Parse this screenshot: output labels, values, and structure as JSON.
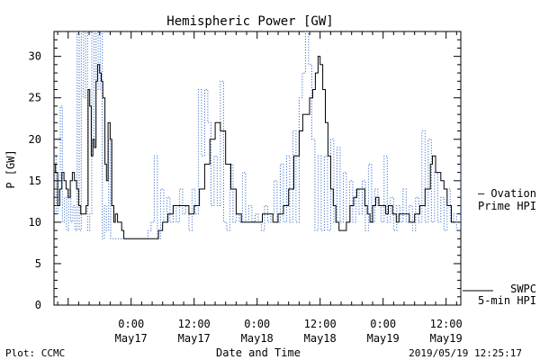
{
  "chart_data": {
    "type": "line",
    "title": "Hemispheric Power [GW]",
    "ylabel": "P [GW]",
    "xlabel": "Date and Time",
    "ylim": [
      0,
      33
    ],
    "y_ticks": [
      0,
      5,
      10,
      15,
      20,
      25,
      30
    ],
    "xlim_hours": [
      -14.7,
      62.8
    ],
    "x_ticks": [
      {
        "hour": 0,
        "time": "0:00",
        "date": "May17"
      },
      {
        "hour": 12,
        "time": "12:00",
        "date": "May17"
      },
      {
        "hour": 24,
        "time": "0:00",
        "date": "May18"
      },
      {
        "hour": 36,
        "time": "12:00",
        "date": "May18"
      },
      {
        "hour": 48,
        "time": "0:00",
        "date": "May19"
      },
      {
        "hour": 60,
        "time": "12:00",
        "date": "May19"
      }
    ],
    "colors": {
      "ovation": "#3a6fc8",
      "swpc": "#000000"
    },
    "series": [
      {
        "name": "5-min HPI",
        "source": "SWPC",
        "color": "#000000",
        "style": "solid",
        "points": [
          [
            -14.7,
            17
          ],
          [
            -14.4,
            16
          ],
          [
            -14.0,
            12
          ],
          [
            -13.6,
            14
          ],
          [
            -13.2,
            16
          ],
          [
            -12.8,
            15
          ],
          [
            -12.4,
            14
          ],
          [
            -12.0,
            13
          ],
          [
            -11.6,
            15
          ],
          [
            -11.2,
            16
          ],
          [
            -10.8,
            15
          ],
          [
            -10.4,
            14
          ],
          [
            -10.0,
            12
          ],
          [
            -9.6,
            11
          ],
          [
            -9.0,
            11
          ],
          [
            -8.6,
            12
          ],
          [
            -8.2,
            26
          ],
          [
            -7.9,
            24
          ],
          [
            -7.6,
            18
          ],
          [
            -7.3,
            20
          ],
          [
            -7.0,
            19
          ],
          [
            -6.7,
            27
          ],
          [
            -6.4,
            29
          ],
          [
            -6.0,
            28
          ],
          [
            -5.7,
            27
          ],
          [
            -5.4,
            25
          ],
          [
            -5.0,
            17
          ],
          [
            -4.7,
            15
          ],
          [
            -4.4,
            22
          ],
          [
            -4.0,
            20
          ],
          [
            -3.7,
            12
          ],
          [
            -3.3,
            10
          ],
          [
            -3.0,
            11
          ],
          [
            -2.6,
            10
          ],
          [
            -2.2,
            10
          ],
          [
            -1.8,
            9
          ],
          [
            -1.4,
            8
          ],
          [
            0.0,
            8
          ],
          [
            2.0,
            8
          ],
          [
            4.0,
            8
          ],
          [
            5.2,
            9
          ],
          [
            6.0,
            10
          ],
          [
            7.0,
            11
          ],
          [
            8.0,
            12
          ],
          [
            9.0,
            12
          ],
          [
            10.0,
            12
          ],
          [
            11.0,
            11
          ],
          [
            12.0,
            12
          ],
          [
            13.0,
            14
          ],
          [
            14.0,
            17
          ],
          [
            15.0,
            20
          ],
          [
            16.0,
            22
          ],
          [
            17.0,
            21
          ],
          [
            18.0,
            17
          ],
          [
            19.0,
            14
          ],
          [
            20.0,
            11
          ],
          [
            21.0,
            10
          ],
          [
            22.0,
            10
          ],
          [
            23.0,
            10
          ],
          [
            24.0,
            10
          ],
          [
            25.0,
            11
          ],
          [
            26.0,
            11
          ],
          [
            27.0,
            10
          ],
          [
            28.0,
            11
          ],
          [
            29.0,
            12
          ],
          [
            30.0,
            14
          ],
          [
            31.0,
            18
          ],
          [
            32.0,
            21
          ],
          [
            32.7,
            23
          ],
          [
            33.3,
            23
          ],
          [
            34.0,
            25
          ],
          [
            34.6,
            26
          ],
          [
            35.1,
            28
          ],
          [
            35.6,
            30
          ],
          [
            36.0,
            29
          ],
          [
            36.5,
            26
          ],
          [
            37.0,
            22
          ],
          [
            37.5,
            18
          ],
          [
            38.0,
            14
          ],
          [
            38.5,
            12
          ],
          [
            39.0,
            10
          ],
          [
            39.6,
            9
          ],
          [
            40.3,
            9
          ],
          [
            41.0,
            10
          ],
          [
            41.7,
            12
          ],
          [
            42.4,
            13
          ],
          [
            43.0,
            14
          ],
          [
            44.0,
            14
          ],
          [
            44.5,
            12
          ],
          [
            45.0,
            11
          ],
          [
            45.5,
            10
          ],
          [
            46.0,
            12
          ],
          [
            46.6,
            13
          ],
          [
            47.2,
            12
          ],
          [
            48.0,
            12
          ],
          [
            48.5,
            11
          ],
          [
            49.0,
            12
          ],
          [
            49.8,
            11
          ],
          [
            50.5,
            10
          ],
          [
            51.0,
            11
          ],
          [
            52.0,
            11
          ],
          [
            53.0,
            10
          ],
          [
            54.0,
            11
          ],
          [
            55.0,
            12
          ],
          [
            56.0,
            14
          ],
          [
            57.0,
            17
          ],
          [
            57.4,
            18
          ],
          [
            58.0,
            16
          ],
          [
            59.0,
            15
          ],
          [
            59.6,
            14
          ],
          [
            60.2,
            12
          ],
          [
            61.0,
            10
          ],
          [
            61.6,
            10
          ]
        ]
      },
      {
        "name": "Ovation Prime HPI",
        "color": "#3a6fc8",
        "style": "dotted",
        "points": [
          [
            -14.7,
            18
          ],
          [
            -14.3,
            11
          ],
          [
            -13.9,
            15
          ],
          [
            -13.5,
            24
          ],
          [
            -13.1,
            10
          ],
          [
            -12.7,
            13
          ],
          [
            -12.3,
            9
          ],
          [
            -11.9,
            14
          ],
          [
            -11.5,
            10
          ],
          [
            -11.1,
            12
          ],
          [
            -10.7,
            9
          ],
          [
            -10.3,
            33
          ],
          [
            -9.9,
            9
          ],
          [
            -9.5,
            33
          ],
          [
            -9.1,
            25
          ],
          [
            -8.7,
            33
          ],
          [
            -8.3,
            9
          ],
          [
            -7.9,
            11
          ],
          [
            -7.5,
            33
          ],
          [
            -7.1,
            20
          ],
          [
            -6.7,
            33
          ],
          [
            -6.3,
            26
          ],
          [
            -5.9,
            33
          ],
          [
            -5.5,
            8
          ],
          [
            -5.1,
            12
          ],
          [
            -4.7,
            9
          ],
          [
            -4.3,
            20
          ],
          [
            -3.9,
            8
          ],
          [
            0.0,
            8
          ],
          [
            2.5,
            8
          ],
          [
            3.2,
            9
          ],
          [
            3.8,
            10
          ],
          [
            4.4,
            18
          ],
          [
            5.0,
            8
          ],
          [
            5.6,
            14
          ],
          [
            6.2,
            10
          ],
          [
            6.8,
            13
          ],
          [
            7.4,
            10
          ],
          [
            8.0,
            12
          ],
          [
            8.6,
            10
          ],
          [
            9.2,
            14
          ],
          [
            9.8,
            11
          ],
          [
            10.4,
            12
          ],
          [
            11.0,
            9
          ],
          [
            11.6,
            14
          ],
          [
            12.2,
            11
          ],
          [
            12.8,
            26
          ],
          [
            13.4,
            18
          ],
          [
            14.0,
            26
          ],
          [
            14.6,
            22
          ],
          [
            15.2,
            12
          ],
          [
            15.8,
            18
          ],
          [
            16.4,
            12
          ],
          [
            17.0,
            27
          ],
          [
            17.6,
            10
          ],
          [
            18.2,
            9
          ],
          [
            18.8,
            17
          ],
          [
            19.4,
            10
          ],
          [
            20.0,
            11
          ],
          [
            20.6,
            10
          ],
          [
            21.2,
            16
          ],
          [
            21.8,
            10
          ],
          [
            22.4,
            12
          ],
          [
            23.0,
            10
          ],
          [
            23.6,
            11
          ],
          [
            24.2,
            10
          ],
          [
            24.8,
            9
          ],
          [
            25.4,
            12
          ],
          [
            26.0,
            10
          ],
          [
            26.6,
            11
          ],
          [
            27.2,
            15
          ],
          [
            27.8,
            10
          ],
          [
            28.4,
            17
          ],
          [
            29.0,
            10
          ],
          [
            29.6,
            18
          ],
          [
            30.2,
            10
          ],
          [
            30.8,
            21
          ],
          [
            31.4,
            10
          ],
          [
            32.0,
            25
          ],
          [
            32.6,
            28
          ],
          [
            33.2,
            33
          ],
          [
            33.8,
            29
          ],
          [
            34.4,
            20
          ],
          [
            35.0,
            9
          ],
          [
            35.6,
            18
          ],
          [
            36.2,
            9
          ],
          [
            36.8,
            18
          ],
          [
            37.4,
            9
          ],
          [
            38.0,
            20
          ],
          [
            38.6,
            10
          ],
          [
            39.2,
            19
          ],
          [
            39.8,
            10
          ],
          [
            40.4,
            16
          ],
          [
            41.0,
            10
          ],
          [
            41.6,
            15
          ],
          [
            42.2,
            10
          ],
          [
            42.8,
            14
          ],
          [
            43.4,
            11
          ],
          [
            44.0,
            15
          ],
          [
            44.6,
            9
          ],
          [
            45.2,
            17
          ],
          [
            45.8,
            10
          ],
          [
            46.4,
            14
          ],
          [
            47.0,
            12
          ],
          [
            47.6,
            10
          ],
          [
            48.2,
            18
          ],
          [
            48.8,
            10
          ],
          [
            49.4,
            13
          ],
          [
            50.0,
            9
          ],
          [
            50.6,
            12
          ],
          [
            51.2,
            10
          ],
          [
            51.8,
            14
          ],
          [
            52.4,
            10
          ],
          [
            53.0,
            12
          ],
          [
            53.6,
            9
          ],
          [
            54.2,
            13
          ],
          [
            54.8,
            10
          ],
          [
            55.4,
            21
          ],
          [
            56.0,
            10
          ],
          [
            56.6,
            20
          ],
          [
            57.2,
            10
          ],
          [
            57.8,
            16
          ],
          [
            58.4,
            10
          ],
          [
            59.0,
            13
          ],
          [
            59.6,
            9
          ],
          [
            60.2,
            14
          ],
          [
            60.8,
            10
          ],
          [
            61.4,
            11
          ],
          [
            62.0,
            9
          ],
          [
            62.8,
            17
          ]
        ]
      }
    ],
    "legend": {
      "ovation_lines": [
        "— Ovation",
        "Prime HPI"
      ],
      "swpc_lines": [
        "SWPC",
        "5-min HPI"
      ]
    }
  },
  "footer": {
    "left": "Plot: CCMC",
    "right": "2019/05/19 12:25:17"
  }
}
